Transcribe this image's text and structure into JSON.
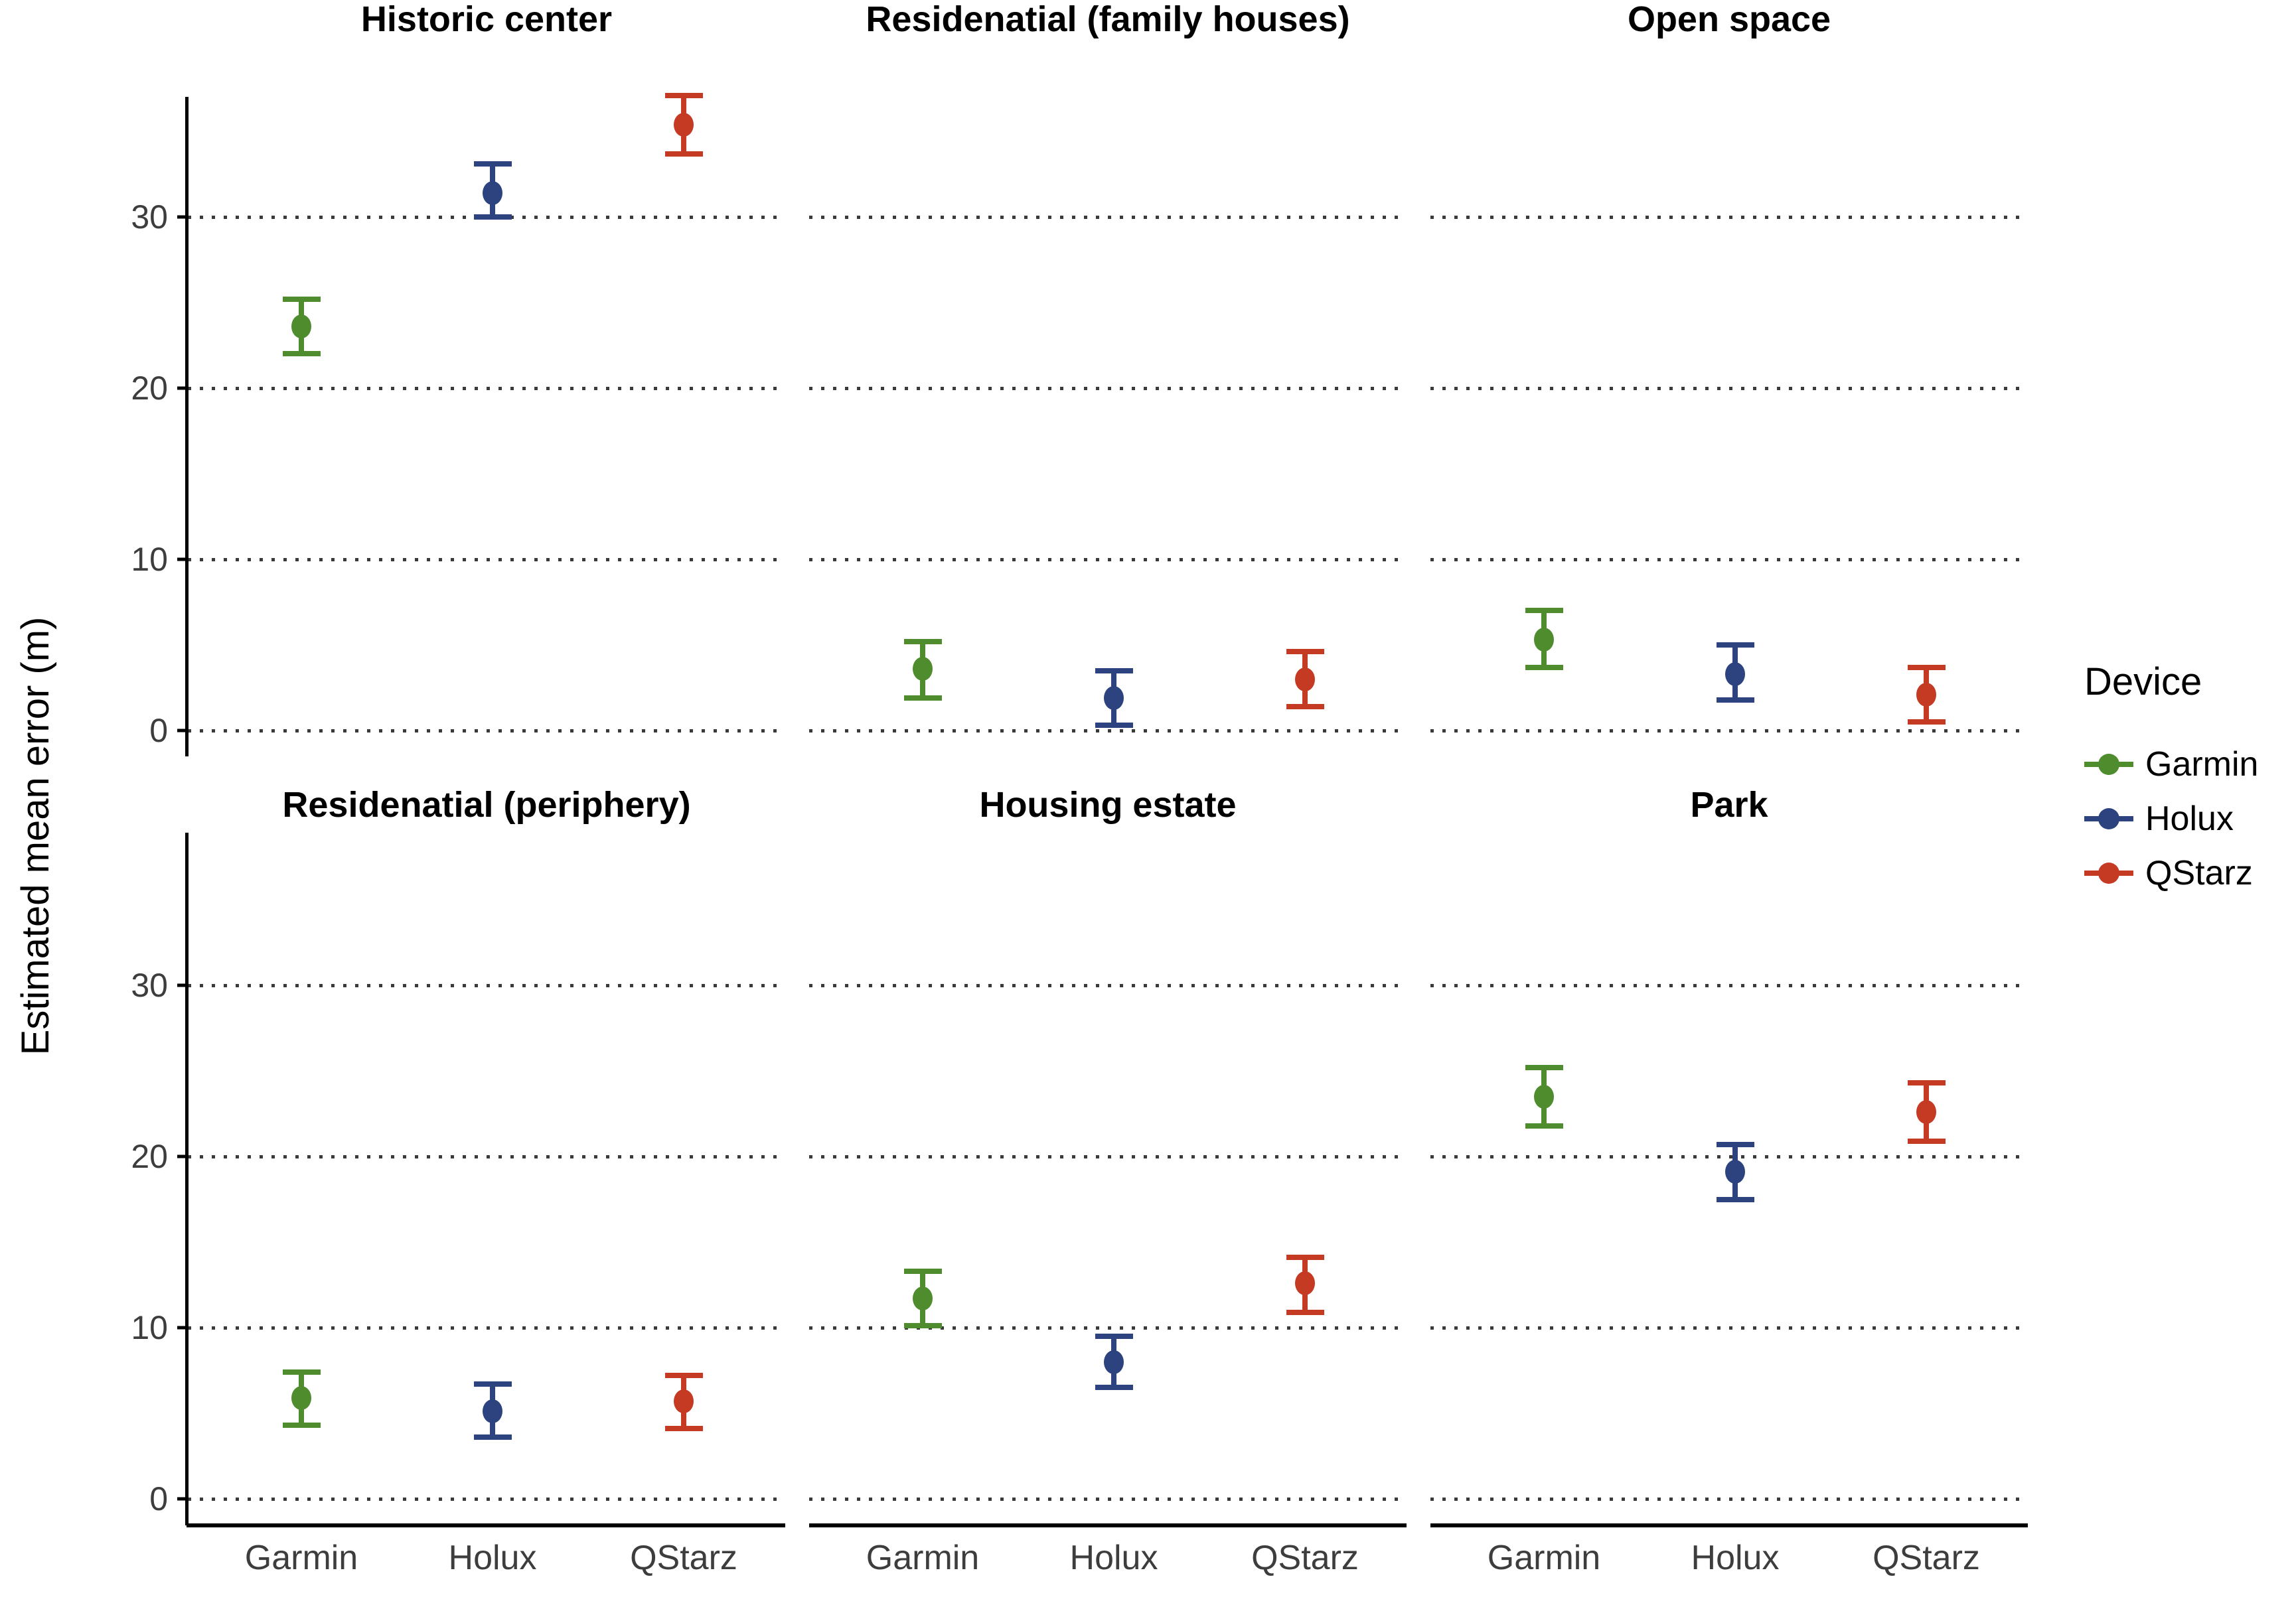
{
  "chart_data": {
    "type": "pointrange",
    "title": "",
    "xlabel": "",
    "ylabel": "Estimated mean error (m)",
    "x_categories": [
      "Garmin",
      "Holux",
      "QStarz"
    ],
    "y_ticks": [
      0,
      10,
      20,
      30
    ],
    "ylim_top_row": [
      -1.5,
      37.0
    ],
    "ylim_bottom_row": [
      -1.6,
      38.9
    ],
    "grid": "horizontal dotted lines at y ticks",
    "legend": {
      "title": "Device",
      "position": "right"
    },
    "series": [
      {
        "name": "Garmin",
        "color": "#4e8c2e"
      },
      {
        "name": "Holux",
        "color": "#2c4380"
      },
      {
        "name": "QStarz",
        "color": "#c43a22"
      }
    ],
    "facets": [
      {
        "title": "Historic center",
        "row": 0,
        "points": [
          {
            "device": "Garmin",
            "mean": 23.6,
            "low": 22.0,
            "high": 25.2
          },
          {
            "device": "Holux",
            "mean": 31.4,
            "low": 30.0,
            "high": 33.1
          },
          {
            "device": "QStarz",
            "mean": 35.4,
            "low": 33.7,
            "high": 37.1
          }
        ]
      },
      {
        "title": "Residenatial (family houses)",
        "row": 0,
        "points": [
          {
            "device": "Garmin",
            "mean": 3.6,
            "low": 1.9,
            "high": 5.2
          },
          {
            "device": "Holux",
            "mean": 1.9,
            "low": 0.3,
            "high": 3.5
          },
          {
            "device": "QStarz",
            "mean": 3.0,
            "low": 1.4,
            "high": 4.6
          }
        ]
      },
      {
        "title": "Open space",
        "row": 0,
        "points": [
          {
            "device": "Garmin",
            "mean": 5.3,
            "low": 3.7,
            "high": 7.0
          },
          {
            "device": "Holux",
            "mean": 3.3,
            "low": 1.8,
            "high": 5.0
          },
          {
            "device": "QStarz",
            "mean": 2.1,
            "low": 0.5,
            "high": 3.7
          }
        ]
      },
      {
        "title": "Residenatial (periphery)",
        "row": 1,
        "points": [
          {
            "device": "Garmin",
            "mean": 5.9,
            "low": 4.3,
            "high": 7.4
          },
          {
            "device": "Holux",
            "mean": 5.1,
            "low": 3.6,
            "high": 6.7
          },
          {
            "device": "QStarz",
            "mean": 5.7,
            "low": 4.1,
            "high": 7.2
          }
        ]
      },
      {
        "title": "Housing estate",
        "row": 1,
        "points": [
          {
            "device": "Garmin",
            "mean": 11.7,
            "low": 10.1,
            "high": 13.3
          },
          {
            "device": "Holux",
            "mean": 8.0,
            "low": 6.5,
            "high": 9.5
          },
          {
            "device": "QStarz",
            "mean": 12.6,
            "low": 10.9,
            "high": 14.1
          }
        ]
      },
      {
        "title": "Park",
        "row": 1,
        "points": [
          {
            "device": "Garmin",
            "mean": 23.5,
            "low": 21.8,
            "high": 25.2
          },
          {
            "device": "Holux",
            "mean": 19.1,
            "low": 17.5,
            "high": 20.7
          },
          {
            "device": "QStarz",
            "mean": 22.6,
            "low": 20.9,
            "high": 24.3
          }
        ]
      }
    ],
    "colors": {
      "grid_dot": "#3a3a3a",
      "axis_line": "#000000",
      "tick_label": "#3d3d3d",
      "facet_title": "#000000"
    }
  }
}
